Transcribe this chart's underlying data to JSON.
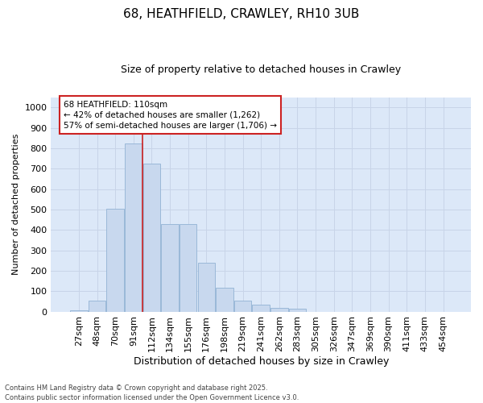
{
  "title": "68, HEATHFIELD, CRAWLEY, RH10 3UB",
  "subtitle": "Size of property relative to detached houses in Crawley",
  "xlabel": "Distribution of detached houses by size in Crawley",
  "ylabel": "Number of detached properties",
  "categories": [
    "27sqm",
    "48sqm",
    "70sqm",
    "91sqm",
    "112sqm",
    "134sqm",
    "155sqm",
    "176sqm",
    "198sqm",
    "219sqm",
    "241sqm",
    "262sqm",
    "283sqm",
    "305sqm",
    "326sqm",
    "347sqm",
    "369sqm",
    "390sqm",
    "411sqm",
    "433sqm",
    "454sqm"
  ],
  "values": [
    8,
    55,
    505,
    825,
    725,
    430,
    430,
    240,
    118,
    55,
    35,
    18,
    15,
    0,
    0,
    0,
    0,
    0,
    0,
    0,
    0
  ],
  "bar_color": "#c8d8ee",
  "bar_edge_color": "#9ab8d8",
  "grid_color": "#c8d4e8",
  "plot_bg_color": "#dce8f8",
  "fig_bg_color": "#ffffff",
  "vline_color": "#cc2222",
  "vline_x_idx": 4,
  "annotation_text": "68 HEATHFIELD: 110sqm\n← 42% of detached houses are smaller (1,262)\n57% of semi-detached houses are larger (1,706) →",
  "annotation_box_facecolor": "#ffffff",
  "annotation_box_edgecolor": "#cc2222",
  "footer": "Contains HM Land Registry data © Crown copyright and database right 2025.\nContains public sector information licensed under the Open Government Licence v3.0.",
  "ylim": [
    0,
    1050
  ],
  "yticks": [
    0,
    100,
    200,
    300,
    400,
    500,
    600,
    700,
    800,
    900,
    1000
  ],
  "title_fontsize": 11,
  "subtitle_fontsize": 9,
  "xlabel_fontsize": 9,
  "ylabel_fontsize": 8,
  "tick_fontsize": 8,
  "annot_fontsize": 7.5,
  "footer_fontsize": 6
}
